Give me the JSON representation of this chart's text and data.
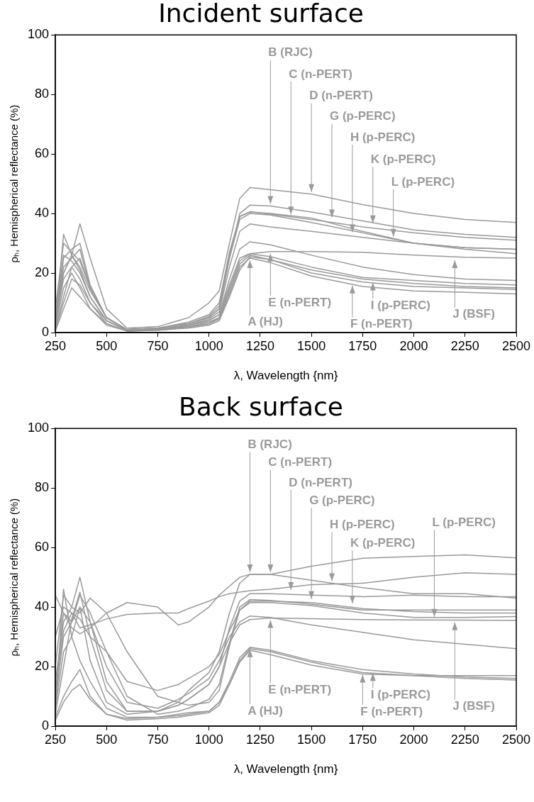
{
  "chart_data": [
    {
      "type": "line",
      "title": "Incident surface",
      "xlabel": "λ, Wavelength {nm}",
      "ylabel": "ρₕ, Hemispherical reflectance (%)",
      "xlim": [
        250,
        2500
      ],
      "xticks": [
        250,
        500,
        750,
        1000,
        1250,
        1500,
        1750,
        2000,
        2250,
        2500
      ],
      "ylim": [
        0,
        100
      ],
      "yticks": [
        0,
        20,
        40,
        60,
        80,
        100
      ],
      "grid": false,
      "legend": false,
      "marker": "none",
      "x": [
        250,
        290,
        330,
        370,
        420,
        500,
        600,
        750,
        900,
        1000,
        1050,
        1100,
        1150,
        1200,
        1300,
        1500,
        1750,
        2000,
        2250,
        2500
      ],
      "series": [
        {
          "color": "#999999",
          "values": [
            5,
            20,
            26,
            36.5,
            25,
            8,
            1.5,
            2,
            5,
            10,
            14,
            30,
            45,
            48.7,
            48,
            46.5,
            43,
            40,
            38,
            37
          ]
        },
        {
          "color": "#999999",
          "values": [
            2,
            33,
            26,
            22,
            14,
            5,
            1,
            1.5,
            3,
            5,
            8,
            25,
            40,
            42.8,
            42.5,
            40.5,
            37.5,
            34.5,
            33,
            32
          ]
        },
        {
          "color": "#999999",
          "values": [
            8,
            30,
            27,
            24,
            15,
            5,
            1,
            1.5,
            3,
            5.5,
            9,
            26,
            39,
            40.6,
            39.8,
            38,
            35.5,
            33.5,
            32,
            31
          ]
        },
        {
          "color": "#999999",
          "values": [
            3,
            25,
            28,
            30,
            16,
            5,
            1,
            1.5,
            3.5,
            6,
            10,
            27,
            39,
            40.5,
            40,
            38.5,
            34,
            30,
            28.5,
            28
          ]
        },
        {
          "color": "#999999",
          "values": [
            4,
            22,
            25,
            28,
            15,
            5,
            1,
            1.5,
            3,
            5,
            8,
            25,
            38,
            40,
            39.5,
            37,
            33.5,
            30,
            28,
            26.5
          ]
        },
        {
          "color": "#999999",
          "values": [
            1,
            12,
            22,
            25,
            15,
            5,
            1,
            1.2,
            2.5,
            4.5,
            7,
            22,
            34,
            36.5,
            35.5,
            34,
            32,
            30,
            28.5,
            28
          ]
        },
        {
          "color": "#999999",
          "values": [
            2,
            20,
            26,
            21,
            12,
            4,
            0.8,
            1,
            2.5,
            4,
            6,
            16,
            25,
            26.5,
            27.2,
            27.2,
            27,
            26,
            25.3,
            25
          ]
        },
        {
          "color": "#999999",
          "values": [
            6,
            26,
            24,
            20,
            12,
            4,
            0.8,
            1,
            2.5,
            4,
            6,
            18,
            28,
            30.5,
            29.5,
            26,
            22,
            19.5,
            18,
            17.5
          ]
        },
        {
          "color": "#999999",
          "values": [
            3,
            18,
            22,
            18,
            10,
            4,
            0.8,
            1,
            2,
            3.5,
            5,
            15,
            24,
            26.5,
            25.5,
            22,
            18.5,
            17.5,
            16.5,
            16
          ]
        },
        {
          "color": "#999999",
          "values": [
            1,
            10,
            18,
            16,
            10,
            3,
            0.6,
            1,
            2,
            3,
            5,
            14,
            23,
            26,
            24.5,
            20,
            17,
            15.5,
            15,
            14.5
          ]
        },
        {
          "color": "#999999",
          "values": [
            2,
            15,
            20,
            15,
            8,
            3,
            0.5,
            0.8,
            1.8,
            3,
            4.5,
            13,
            22,
            25,
            23.5,
            19,
            15.5,
            14,
            13.5,
            13
          ]
        },
        {
          "color": "#999999",
          "values": [
            0.5,
            8,
            15,
            12,
            8,
            2.5,
            0.5,
            0.8,
            1.5,
            2.5,
            4,
            12,
            21,
            25.5,
            24.5,
            21,
            18,
            16.5,
            15.5,
            15
          ]
        }
      ],
      "annotations": [
        {
          "text": "B (RJC)",
          "x": 1300,
          "y": 42.5
        },
        {
          "text": "C (n-PERT)",
          "x": 1400,
          "y": 39
        },
        {
          "text": "D (n-PERT)",
          "x": 1500,
          "y": 46.5
        },
        {
          "text": "G (p-PERC)",
          "x": 1600,
          "y": 38
        },
        {
          "text": "H (p-PERC)",
          "x": 1700,
          "y": 33
        },
        {
          "text": "K (p-PERC)",
          "x": 1800,
          "y": 36
        },
        {
          "text": "L (p-PERC)",
          "x": 1900,
          "y": 31.5
        },
        {
          "text": "A (HJ)",
          "x": 1200,
          "y": 25
        },
        {
          "text": "E (n-PERT)",
          "x": 1300,
          "y": 27.2
        },
        {
          "text": "F (n-PERT)",
          "x": 1700,
          "y": 16.5
        },
        {
          "text": "I (p-PERC)",
          "x": 1800,
          "y": 17.5
        },
        {
          "text": "J (BSF)",
          "x": 2200,
          "y": 25
        }
      ]
    },
    {
      "type": "line",
      "title": "Back surface",
      "xlabel": "λ, Wavelength {nm}",
      "ylabel": "ρₕ, Hemispherical reflectance (%)",
      "xlim": [
        250,
        2500
      ],
      "xticks": [
        250,
        500,
        750,
        1000,
        1250,
        1500,
        1750,
        2000,
        2250,
        2500
      ],
      "ylim": [
        0,
        100
      ],
      "yticks": [
        0,
        20,
        40,
        60,
        80,
        100
      ],
      "grid": false,
      "legend": false,
      "marker": "none",
      "x": [
        250,
        290,
        330,
        370,
        420,
        500,
        600,
        750,
        850,
        900,
        1000,
        1050,
        1100,
        1150,
        1200,
        1300,
        1500,
        1750,
        2000,
        2250,
        2500
      ],
      "series": [
        {
          "color": "#999999",
          "values": [
            44,
            38,
            33,
            31,
            33,
            38,
            41.5,
            40,
            34,
            35,
            40,
            44,
            47,
            50,
            51,
            51,
            53.7,
            56.4,
            57,
            57.5,
            56.5
          ]
        },
        {
          "color": "#999999",
          "values": [
            30,
            40,
            38,
            33,
            34,
            36,
            37.5,
            38,
            38,
            39.5,
            42,
            43.5,
            44.5,
            45,
            45.5,
            46,
            47.5,
            48,
            50,
            51.5,
            51
          ]
        },
        {
          "color": "#999999",
          "values": [
            5,
            46,
            30,
            40,
            22,
            8,
            4,
            5,
            8,
            12,
            18,
            25,
            38,
            48,
            51,
            51,
            49,
            46.5,
            44.5,
            44.5,
            43
          ]
        },
        {
          "color": "#999999",
          "values": [
            20,
            44,
            40,
            50,
            35,
            15,
            5,
            5,
            7,
            9,
            14,
            20,
            33,
            42,
            44.5,
            44.5,
            44,
            43.5,
            44,
            43.5,
            43.5
          ]
        },
        {
          "color": "#999999",
          "values": [
            10,
            38,
            35,
            44,
            38,
            25,
            10,
            4,
            5,
            6,
            9,
            14,
            28,
            40,
            42.5,
            42.2,
            41,
            39,
            39,
            39,
            39
          ]
        },
        {
          "color": "#999999",
          "values": [
            15,
            35,
            40,
            38,
            43,
            38,
            25,
            10,
            8,
            7,
            8,
            12,
            27,
            39,
            42,
            42,
            41.5,
            39.5,
            38.5,
            38,
            38
          ]
        },
        {
          "color": "#999999",
          "values": [
            8,
            30,
            35,
            40,
            35,
            20,
            8,
            6,
            9,
            11,
            16,
            22,
            30,
            35,
            37,
            36.5,
            34,
            31.5,
            29,
            27.5,
            26
          ]
        },
        {
          "color": "#999999",
          "values": [
            4,
            20,
            36,
            45,
            30,
            12,
            5,
            5,
            7,
            9,
            14,
            20,
            28,
            34,
            35.8,
            36.3,
            36.1,
            35.8,
            35.7,
            35.6,
            35.5
          ]
        },
        {
          "color": "#999999",
          "values": [
            12,
            32,
            38,
            36,
            30,
            25,
            15,
            12,
            14,
            16,
            20,
            24,
            32,
            39,
            41.5,
            41.5,
            40.5,
            38,
            36.5,
            36.5,
            36.8
          ]
        },
        {
          "color": "#999999",
          "values": [
            3,
            10,
            15,
            19,
            10,
            4,
            2.5,
            3,
            3.5,
            4,
            5,
            8,
            15,
            23,
            26.5,
            25.5,
            22,
            19,
            17.5,
            16.5,
            16
          ]
        },
        {
          "color": "#999999",
          "values": [
            2,
            8,
            12,
            14,
            9,
            4,
            2,
            2.5,
            3,
            3.5,
            4.5,
            7,
            14,
            22,
            26,
            25,
            21.5,
            18,
            17,
            16,
            15.5
          ]
        },
        {
          "color": "#999999",
          "values": [
            6,
            25,
            30,
            22,
            15,
            6,
            3,
            3,
            4,
            4.5,
            5,
            8,
            14,
            21.5,
            25.5,
            24,
            20.5,
            17.5,
            17,
            17,
            17
          ]
        }
      ],
      "annotations": [
        {
          "text": "B (RJC)",
          "x": 1200,
          "y": 51
        },
        {
          "text": "C (n-PERT)",
          "x": 1300,
          "y": 51
        },
        {
          "text": "D (n-PERT)",
          "x": 1400,
          "y": 45
        },
        {
          "text": "G (p-PERC)",
          "x": 1500,
          "y": 42
        },
        {
          "text": "H (p-PERC)",
          "x": 1600,
          "y": 48
        },
        {
          "text": "K (p-PERC)",
          "x": 1700,
          "y": 40.5
        },
        {
          "text": "L (p-PERC)",
          "x": 2100,
          "y": 36
        },
        {
          "text": "A (HJ)",
          "x": 1200,
          "y": 26.5
        },
        {
          "text": "E (n-PERT)",
          "x": 1300,
          "y": 36.3
        },
        {
          "text": "F (n-PERT)",
          "x": 1750,
          "y": 18
        },
        {
          "text": "I (p-PERC)",
          "x": 1800,
          "y": 18.5
        },
        {
          "text": "J (BSF)",
          "x": 2200,
          "y": 35.6
        }
      ]
    }
  ]
}
